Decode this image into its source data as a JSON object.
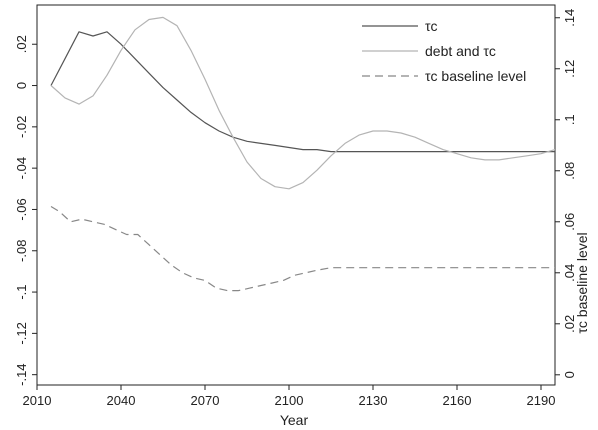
{
  "chart_data": {
    "type": "line",
    "xlabel": "Year",
    "ylabel_right": "τc baseline level",
    "xlim": [
      2010,
      2195
    ],
    "x_ticks": [
      2010,
      2040,
      2070,
      2100,
      2130,
      2160,
      2190
    ],
    "left_axis": {
      "ylim": [
        -0.145,
        0.039
      ],
      "ticks": [
        0.02,
        0,
        -0.02,
        -0.04,
        -0.06,
        -0.08,
        -0.1,
        -0.12,
        -0.14
      ],
      "tick_labels": [
        ".02",
        "0",
        "-.02",
        "-.04",
        "-.06",
        "-.08",
        "-.1",
        "-.12",
        "-.14"
      ]
    },
    "right_axis": {
      "ylim": [
        -0.004,
        0.145
      ],
      "ticks": [
        0,
        0.02,
        0.04,
        0.06,
        0.08,
        0.1,
        0.12,
        0.14
      ],
      "tick_labels": [
        "0",
        ".02",
        ".04",
        ".06",
        ".08",
        ".1",
        ".12",
        ".14"
      ]
    },
    "legend_position": "top-right",
    "grid": false,
    "series": [
      {
        "name": "τc",
        "axis": "left",
        "color": "#555555",
        "dash": "solid",
        "x": [
          2015,
          2020,
          2025,
          2030,
          2035,
          2040,
          2045,
          2050,
          2055,
          2060,
          2065,
          2070,
          2075,
          2080,
          2085,
          2090,
          2095,
          2100,
          2105,
          2110,
          2115,
          2120,
          2125,
          2130,
          2140,
          2150,
          2160,
          2170,
          2180,
          2190,
          2195
        ],
        "y": [
          0.0,
          0.013,
          0.026,
          0.024,
          0.026,
          0.02,
          0.013,
          0.006,
          -0.001,
          -0.007,
          -0.013,
          -0.018,
          -0.022,
          -0.025,
          -0.027,
          -0.028,
          -0.029,
          -0.03,
          -0.031,
          -0.031,
          -0.032,
          -0.032,
          -0.032,
          -0.032,
          -0.032,
          -0.032,
          -0.032,
          -0.032,
          -0.032,
          -0.032,
          -0.032
        ]
      },
      {
        "name": "debt and τc",
        "axis": "left",
        "color": "#b4b4b4",
        "dash": "solid",
        "x": [
          2015,
          2020,
          2025,
          2030,
          2035,
          2040,
          2045,
          2050,
          2055,
          2060,
          2065,
          2070,
          2075,
          2080,
          2085,
          2090,
          2095,
          2100,
          2105,
          2110,
          2115,
          2120,
          2125,
          2130,
          2135,
          2140,
          2145,
          2150,
          2155,
          2160,
          2165,
          2170,
          2175,
          2180,
          2185,
          2190,
          2195
        ],
        "y": [
          0.0,
          -0.006,
          -0.009,
          -0.005,
          0.005,
          0.017,
          0.027,
          0.032,
          0.033,
          0.029,
          0.017,
          0.003,
          -0.012,
          -0.025,
          -0.037,
          -0.045,
          -0.049,
          -0.05,
          -0.047,
          -0.041,
          -0.034,
          -0.028,
          -0.024,
          -0.022,
          -0.022,
          -0.023,
          -0.025,
          -0.028,
          -0.031,
          -0.033,
          -0.035,
          -0.036,
          -0.036,
          -0.035,
          -0.034,
          -0.033,
          -0.031
        ]
      },
      {
        "name": "τc baseline level",
        "axis": "right",
        "color": "#888888",
        "dash": "dashed",
        "x": [
          2015,
          2018,
          2022,
          2026,
          2030,
          2034,
          2038,
          2042,
          2046,
          2050,
          2054,
          2058,
          2062,
          2066,
          2070,
          2074,
          2078,
          2082,
          2086,
          2090,
          2094,
          2098,
          2102,
          2106,
          2110,
          2115,
          2120,
          2130,
          2140,
          2150,
          2160,
          2170,
          2180,
          2190,
          2195
        ],
        "y": [
          0.066,
          0.064,
          0.06,
          0.061,
          0.06,
          0.059,
          0.057,
          0.055,
          0.055,
          0.051,
          0.047,
          0.043,
          0.04,
          0.038,
          0.037,
          0.034,
          0.033,
          0.033,
          0.034,
          0.035,
          0.036,
          0.037,
          0.039,
          0.04,
          0.041,
          0.042,
          0.042,
          0.042,
          0.042,
          0.042,
          0.042,
          0.042,
          0.042,
          0.042,
          0.042
        ]
      }
    ]
  }
}
